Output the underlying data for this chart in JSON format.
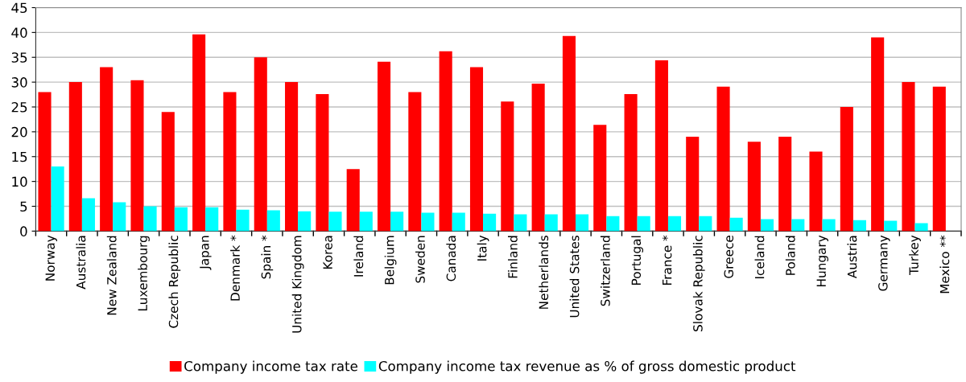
{
  "chart_data": {
    "type": "bar",
    "categories": [
      "Norway",
      "Australia",
      "New Zealand",
      "Luxembourg",
      "Czech Republic",
      "Japan",
      "Denmark *",
      "Spain *",
      "United Kingdom",
      "Korea",
      "Ireland",
      "Belgium",
      "Sweden",
      "Canada",
      "Italy",
      "Finland",
      "Netherlands",
      "United States",
      "Switzerland",
      "Portugal",
      "France *",
      "Slovak Republic",
      "Greece",
      "Iceland",
      "Poland",
      "Hungary",
      "Austria",
      "Germany",
      "Turkey",
      "Mexico **"
    ],
    "series": [
      {
        "name": "Company income tax rate",
        "color": "#ff0000",
        "values": [
          28,
          30,
          33,
          30.4,
          24,
          39.6,
          28,
          35,
          30,
          27.6,
          12.5,
          34.1,
          28,
          36.2,
          33,
          26.1,
          29.7,
          39.3,
          21.4,
          27.6,
          34.4,
          19,
          29.1,
          18,
          19,
          16,
          25,
          39,
          30,
          29.1
        ]
      },
      {
        "name": "Company income tax revenue as % of gross domestic product",
        "color": "#00ffff",
        "values": [
          13,
          6.6,
          5.8,
          5,
          4.8,
          4.8,
          4.3,
          4.2,
          4,
          3.9,
          3.9,
          3.9,
          3.7,
          3.7,
          3.5,
          3.4,
          3.4,
          3.4,
          3,
          3,
          3,
          3,
          2.7,
          2.4,
          2.4,
          2.4,
          2.2,
          2.1,
          1.6,
          null
        ]
      }
    ],
    "ylim": [
      0,
      45
    ],
    "yticks": [
      0,
      5,
      10,
      15,
      20,
      25,
      30,
      35,
      40,
      45
    ],
    "grid": "y",
    "legend": "bottom"
  }
}
